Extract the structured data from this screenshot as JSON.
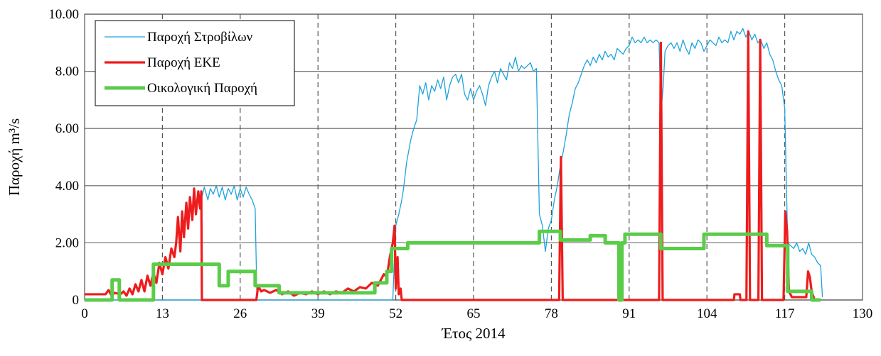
{
  "chart_data": {
    "type": "line",
    "title": "",
    "xlabel": "Έτος 2014",
    "ylabel": "Παροχή m³/s",
    "xlim": [
      0,
      130
    ],
    "ylim": [
      0,
      10
    ],
    "x_ticks": [
      0,
      13,
      26,
      39,
      52,
      65,
      78,
      91,
      104,
      117,
      130
    ],
    "x_tick_labels": [
      "0",
      "13",
      "26",
      "39",
      "52",
      "65",
      "78",
      "91",
      "104",
      "117",
      "130"
    ],
    "y_ticks": [
      0,
      2,
      4,
      6,
      8,
      10
    ],
    "y_tick_labels": [
      "0",
      "2.00",
      "4.00",
      "6.00",
      "8.00",
      "10.00"
    ],
    "grid": {
      "horizontal": "solid",
      "vertical": "dashed"
    },
    "legend": "top-left",
    "series": [
      {
        "name": "Παροχή Στροβίλων",
        "color": "#1ea3dc",
        "points": [
          [
            0,
            0
          ],
          [
            19.5,
            0
          ],
          [
            19.6,
            3.6
          ],
          [
            20,
            3.95
          ],
          [
            20.6,
            3.5
          ],
          [
            21,
            3.9
          ],
          [
            21.5,
            3.7
          ],
          [
            22,
            4.0
          ],
          [
            22.5,
            3.6
          ],
          [
            23,
            3.95
          ],
          [
            23.5,
            3.5
          ],
          [
            24,
            3.9
          ],
          [
            24.5,
            3.7
          ],
          [
            25,
            4.0
          ],
          [
            25.5,
            3.5
          ],
          [
            26,
            3.9
          ],
          [
            26.5,
            3.6
          ],
          [
            27,
            3.95
          ],
          [
            27.5,
            3.7
          ],
          [
            28,
            3.5
          ],
          [
            28.5,
            3.2
          ],
          [
            28.8,
            0
          ],
          [
            51.5,
            0
          ],
          [
            52,
            2.6
          ],
          [
            52.5,
            3.0
          ],
          [
            53,
            3.5
          ],
          [
            53.3,
            3.9
          ],
          [
            53.8,
            4.8
          ],
          [
            54.5,
            5.6
          ],
          [
            55,
            6.0
          ],
          [
            55.5,
            6.3
          ],
          [
            56,
            7.5
          ],
          [
            56.5,
            7.2
          ],
          [
            57,
            7.6
          ],
          [
            57.5,
            7.0
          ],
          [
            58,
            7.5
          ],
          [
            58.5,
            7.3
          ],
          [
            59,
            7.7
          ],
          [
            59.5,
            7.4
          ],
          [
            60,
            7.8
          ],
          [
            60.5,
            7.0
          ],
          [
            61,
            7.5
          ],
          [
            61.5,
            7.8
          ],
          [
            62,
            7.9
          ],
          [
            62.5,
            7.6
          ],
          [
            63,
            7.9
          ],
          [
            63.5,
            7.2
          ],
          [
            64,
            7.0
          ],
          [
            64.5,
            7.4
          ],
          [
            65,
            7.0
          ],
          [
            65.5,
            7.3
          ],
          [
            66,
            7.5
          ],
          [
            66.5,
            7.2
          ],
          [
            67,
            6.8
          ],
          [
            67.5,
            7.5
          ],
          [
            68,
            7.8
          ],
          [
            68.5,
            8.0
          ],
          [
            69,
            7.6
          ],
          [
            69.5,
            8.1
          ],
          [
            70,
            7.9
          ],
          [
            70.5,
            7.7
          ],
          [
            71,
            8.3
          ],
          [
            71.5,
            8.1
          ],
          [
            72,
            8.5
          ],
          [
            72.5,
            8.0
          ],
          [
            73,
            8.2
          ],
          [
            73.5,
            8.1
          ],
          [
            74,
            8.2
          ],
          [
            74.5,
            8.3
          ],
          [
            75,
            8.0
          ],
          [
            75.5,
            8.1
          ],
          [
            76,
            3.0
          ],
          [
            76.5,
            2.6
          ],
          [
            77,
            1.7
          ],
          [
            77.5,
            2.5
          ],
          [
            78,
            2.8
          ],
          [
            78.5,
            3.5
          ],
          [
            79,
            4.0
          ],
          [
            79.5,
            4.7
          ],
          [
            80,
            5.2
          ],
          [
            80.5,
            5.8
          ],
          [
            81,
            6.5
          ],
          [
            81.5,
            6.9
          ],
          [
            82,
            7.4
          ],
          [
            82.5,
            7.6
          ],
          [
            83,
            7.9
          ],
          [
            83.5,
            8.2
          ],
          [
            84,
            8.4
          ],
          [
            84.5,
            8.2
          ],
          [
            85,
            8.5
          ],
          [
            85.5,
            8.3
          ],
          [
            86,
            8.6
          ],
          [
            86.5,
            8.4
          ],
          [
            87,
            8.7
          ],
          [
            87.5,
            8.5
          ],
          [
            88,
            8.6
          ],
          [
            88.5,
            8.4
          ],
          [
            89,
            8.8
          ],
          [
            89.5,
            8.7
          ],
          [
            90,
            8.6
          ],
          [
            90.5,
            8.8
          ],
          [
            91,
            8.9
          ],
          [
            91.5,
            9.2
          ],
          [
            92,
            9.0
          ],
          [
            92.5,
            9.1
          ],
          [
            93,
            9.0
          ],
          [
            93.5,
            9.2
          ],
          [
            94,
            9.0
          ],
          [
            94.5,
            9.1
          ],
          [
            95,
            9.0
          ],
          [
            95.5,
            9.1
          ],
          [
            96,
            9.0
          ],
          [
            96.3,
            6.5
          ],
          [
            96.7,
            7.5
          ],
          [
            97,
            8.7
          ],
          [
            97.5,
            8.9
          ],
          [
            98,
            9.0
          ],
          [
            98.5,
            8.8
          ],
          [
            99,
            9.0
          ],
          [
            99.5,
            8.7
          ],
          [
            100,
            9.1
          ],
          [
            100.5,
            8.8
          ],
          [
            101,
            8.6
          ],
          [
            101.5,
            9.0
          ],
          [
            102,
            8.8
          ],
          [
            102.5,
            9.1
          ],
          [
            103,
            9.0
          ],
          [
            103.5,
            8.7
          ],
          [
            104,
            8.9
          ],
          [
            104.5,
            9.1
          ],
          [
            105,
            9.0
          ],
          [
            105.5,
            8.9
          ],
          [
            106,
            9.2
          ],
          [
            106.5,
            9.0
          ],
          [
            107,
            9.1
          ],
          [
            107.5,
            9.0
          ],
          [
            108,
            9.4
          ],
          [
            108.5,
            9.1
          ],
          [
            109,
            9.4
          ],
          [
            109.5,
            9.3
          ],
          [
            110,
            9.5
          ],
          [
            110.5,
            9.2
          ],
          [
            111,
            9.4
          ],
          [
            111.5,
            9.1
          ],
          [
            112,
            9.3
          ],
          [
            112.5,
            9.0
          ],
          [
            113,
            9.1
          ],
          [
            113.5,
            8.8
          ],
          [
            114,
            9.0
          ],
          [
            114.5,
            8.6
          ],
          [
            115,
            8.4
          ],
          [
            115.5,
            8.0
          ],
          [
            116,
            7.7
          ],
          [
            116.5,
            7.5
          ],
          [
            117,
            6.7
          ],
          [
            117.5,
            2.0
          ],
          [
            118,
            1.9
          ],
          [
            118.5,
            1.8
          ],
          [
            119,
            2.0
          ],
          [
            119.5,
            1.7
          ],
          [
            120,
            1.8
          ],
          [
            120.5,
            1.6
          ],
          [
            121,
            2.0
          ],
          [
            121.5,
            1.6
          ],
          [
            122,
            1.5
          ],
          [
            122.5,
            1.3
          ],
          [
            123,
            1.2
          ],
          [
            123.3,
            0.1
          ]
        ]
      },
      {
        "name": "Παροχή ΕΚΕ",
        "color": "#ee1c1c",
        "points": [
          [
            0,
            0.2
          ],
          [
            3.5,
            0.2
          ],
          [
            4,
            0.35
          ],
          [
            4.5,
            0.15
          ],
          [
            5,
            0.25
          ],
          [
            6,
            0.2
          ],
          [
            6.5,
            0.3
          ],
          [
            7,
            0.15
          ],
          [
            7.5,
            0.4
          ],
          [
            8,
            0.2
          ],
          [
            8.5,
            0.55
          ],
          [
            9,
            0.3
          ],
          [
            9.5,
            0.7
          ],
          [
            10,
            0.3
          ],
          [
            10.5,
            0.85
          ],
          [
            11,
            0.5
          ],
          [
            11.5,
            0.95
          ],
          [
            12,
            0.6
          ],
          [
            12.5,
            1.3
          ],
          [
            13,
            0.9
          ],
          [
            13.5,
            1.5
          ],
          [
            14,
            1.1
          ],
          [
            14.5,
            1.8
          ],
          [
            15,
            1.5
          ],
          [
            15.3,
            2.0
          ],
          [
            15.6,
            2.9
          ],
          [
            16,
            1.7
          ],
          [
            16.3,
            3.1
          ],
          [
            16.6,
            2.2
          ],
          [
            17,
            3.4
          ],
          [
            17.3,
            2.5
          ],
          [
            17.6,
            3.6
          ],
          [
            18,
            2.8
          ],
          [
            18.3,
            3.9
          ],
          [
            18.6,
            3.0
          ],
          [
            19,
            3.8
          ],
          [
            19.3,
            3.2
          ],
          [
            19.5,
            3.8
          ],
          [
            19.6,
            0
          ],
          [
            28.7,
            0
          ],
          [
            29,
            0.5
          ],
          [
            29.5,
            0.3
          ],
          [
            30,
            0.35
          ],
          [
            31,
            0.25
          ],
          [
            32,
            0.35
          ],
          [
            33,
            0.2
          ],
          [
            34,
            0.3
          ],
          [
            35,
            0.15
          ],
          [
            36,
            0.25
          ],
          [
            37,
            0.2
          ],
          [
            38,
            0.3
          ],
          [
            39,
            0.2
          ],
          [
            40,
            0.3
          ],
          [
            41,
            0.2
          ],
          [
            42,
            0.3
          ],
          [
            43,
            0.25
          ],
          [
            44,
            0.4
          ],
          [
            45,
            0.3
          ],
          [
            46,
            0.45
          ],
          [
            47,
            0.4
          ],
          [
            48,
            0.6
          ],
          [
            49,
            0.5
          ],
          [
            50,
            0.9
          ],
          [
            50.5,
            0.8
          ],
          [
            51,
            1.5
          ],
          [
            51.5,
            2.0
          ],
          [
            51.8,
            2.6
          ],
          [
            52,
            0.4
          ],
          [
            52.3,
            1.5
          ],
          [
            52.5,
            0.2
          ],
          [
            52.8,
            0.4
          ],
          [
            53,
            0
          ],
          [
            79.3,
            0
          ],
          [
            79.6,
            5.0
          ],
          [
            79.9,
            0
          ],
          [
            96,
            0
          ],
          [
            96.3,
            9.0
          ],
          [
            96.6,
            0
          ],
          [
            108.5,
            0
          ],
          [
            108.6,
            0.2
          ],
          [
            109.5,
            0.2
          ],
          [
            109.6,
            0
          ],
          [
            110.6,
            0
          ],
          [
            110.9,
            9.4
          ],
          [
            111.2,
            0
          ],
          [
            112.6,
            0
          ],
          [
            112.9,
            9.1
          ],
          [
            113.2,
            0
          ],
          [
            116.8,
            0
          ],
          [
            117.1,
            3.1
          ],
          [
            117.4,
            2.4
          ],
          [
            117.7,
            0.3
          ],
          [
            118.2,
            0.1
          ],
          [
            120.6,
            0.1
          ],
          [
            120.9,
            1.0
          ],
          [
            121.2,
            0.8
          ],
          [
            121.5,
            0.3
          ],
          [
            122,
            0
          ]
        ]
      },
      {
        "name": "Οικολογική Παροχή",
        "color": "#5acc4a",
        "points": [
          [
            0,
            0
          ],
          [
            4.6,
            0
          ],
          [
            4.6,
            0.7
          ],
          [
            5.8,
            0.7
          ],
          [
            5.8,
            0
          ],
          [
            11.5,
            0
          ],
          [
            11.5,
            1.25
          ],
          [
            22.5,
            1.25
          ],
          [
            22.5,
            0.5
          ],
          [
            24,
            0.5
          ],
          [
            24,
            1.0
          ],
          [
            28.5,
            1.0
          ],
          [
            28.5,
            0.5
          ],
          [
            32.5,
            0.5
          ],
          [
            32.5,
            0.25
          ],
          [
            48.5,
            0.25
          ],
          [
            48.5,
            0.6
          ],
          [
            50.5,
            0.6
          ],
          [
            50.5,
            1.0
          ],
          [
            51.3,
            1.0
          ],
          [
            51.3,
            1.8
          ],
          [
            54,
            1.8
          ],
          [
            54,
            2.0
          ],
          [
            76,
            2.0
          ],
          [
            76,
            2.4
          ],
          [
            79.5,
            2.4
          ],
          [
            79.5,
            2.1
          ],
          [
            84.5,
            2.1
          ],
          [
            84.5,
            2.25
          ],
          [
            87,
            2.25
          ],
          [
            87,
            2.0
          ],
          [
            89.3,
            2.0
          ],
          [
            89.3,
            0
          ],
          [
            89.8,
            0
          ],
          [
            89.8,
            2.0
          ],
          [
            90.3,
            2.0
          ],
          [
            90.3,
            2.3
          ],
          [
            96.3,
            2.3
          ],
          [
            96.3,
            1.8
          ],
          [
            103.5,
            1.8
          ],
          [
            103.5,
            2.3
          ],
          [
            114,
            2.3
          ],
          [
            114,
            1.9
          ],
          [
            117.5,
            1.9
          ],
          [
            117.5,
            0.3
          ],
          [
            121.5,
            0.3
          ],
          [
            121.5,
            0
          ],
          [
            123,
            0
          ]
        ]
      }
    ]
  }
}
